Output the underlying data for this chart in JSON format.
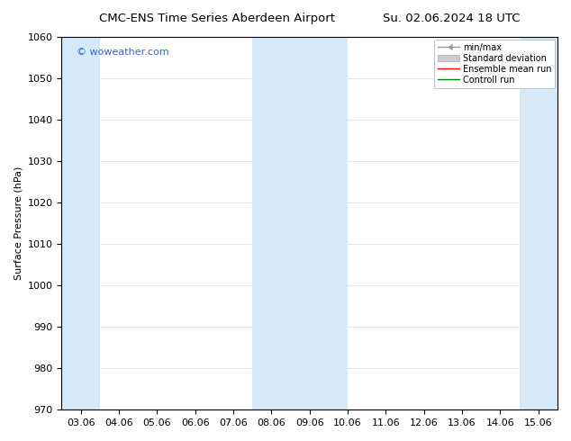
{
  "title_left": "CMC-ENS Time Series Aberdeen Airport",
  "title_right": "Su. 02.06.2024 18 UTC",
  "ylabel": "Surface Pressure (hPa)",
  "ylim": [
    970,
    1060
  ],
  "yticks": [
    970,
    980,
    990,
    1000,
    1010,
    1020,
    1030,
    1040,
    1050,
    1060
  ],
  "xtick_labels": [
    "03.06",
    "04.06",
    "05.06",
    "06.06",
    "07.06",
    "08.06",
    "09.06",
    "10.06",
    "11.06",
    "12.06",
    "13.06",
    "14.06",
    "15.06"
  ],
  "band_color": "#d6e9f8",
  "watermark_text": "© woweather.com",
  "watermark_color": "#3366cc",
  "legend_entries": [
    {
      "label": "min/max",
      "color": "#aaaaaa",
      "style": "minmax"
    },
    {
      "label": "Standard deviation",
      "color": "#cccccc",
      "style": "stddev"
    },
    {
      "label": "Ensemble mean run",
      "color": "red",
      "style": "line"
    },
    {
      "label": "Controll run",
      "color": "green",
      "style": "line"
    }
  ],
  "background_color": "#ffffff",
  "title_fontsize": 9.5,
  "axis_fontsize": 8,
  "watermark_fontsize": 8
}
